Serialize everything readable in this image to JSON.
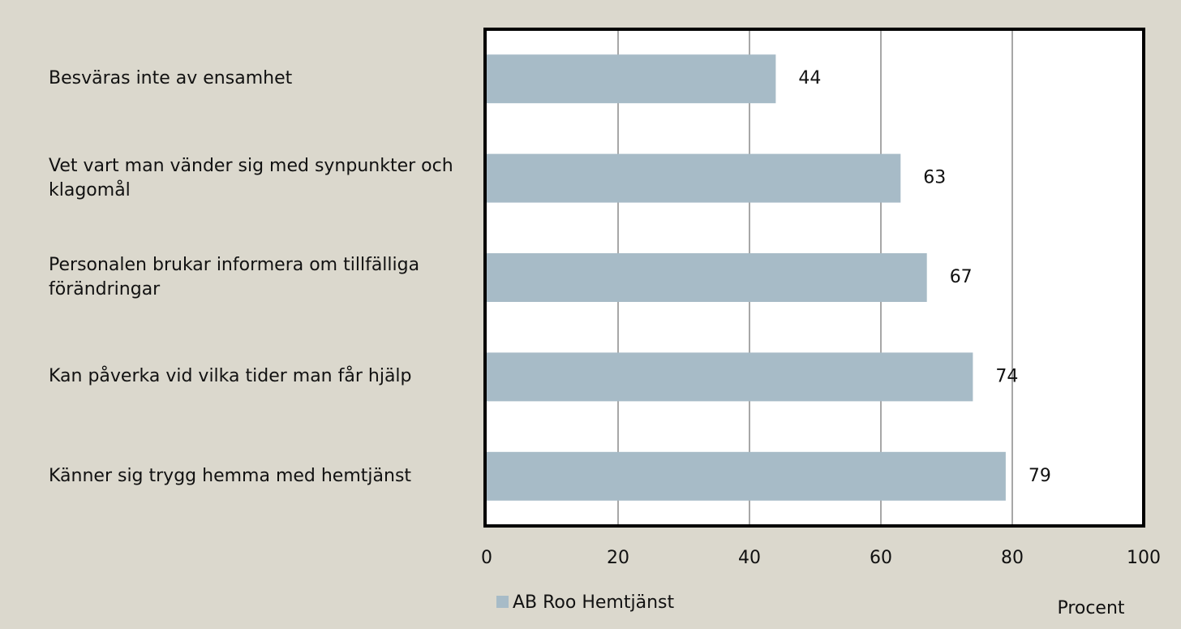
{
  "chart_data": {
    "type": "bar",
    "orientation": "horizontal",
    "categories": [
      "Besväras inte av ensamhet",
      "Vet vart man vänder sig med synpunkter och klagomål",
      "Personalen brukar informera om tillfälliga förändringar",
      "Kan påverka vid vilka tider man får hjälp",
      "Känner sig trygg hemma med hemtjänst"
    ],
    "series": [
      {
        "name": "AB Roo Hemtjänst",
        "color": "#a7bbc7",
        "values": [
          44,
          63,
          67,
          74,
          79
        ]
      }
    ],
    "xlim": [
      0,
      100
    ],
    "xticks": [
      0,
      20,
      40,
      60,
      80,
      100
    ],
    "grid": true,
    "x_axis_label": "Procent",
    "legend": "bottom-left"
  }
}
